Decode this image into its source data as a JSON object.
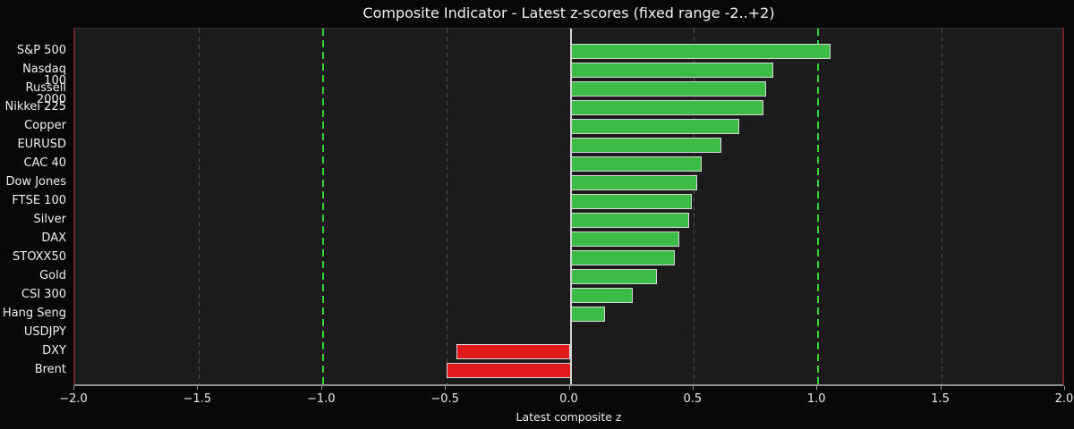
{
  "chart_data": {
    "type": "bar",
    "orientation": "horizontal",
    "title": "Composite Indicator - Latest z-scores (fixed range -2..+2)",
    "xlabel": "Latest composite z",
    "xlim": [
      -2.0,
      2.0
    ],
    "xticks": [
      -2.0,
      -1.5,
      -1.0,
      -0.5,
      0.0,
      0.5,
      1.0,
      1.5,
      2.0
    ],
    "xtick_labels": [
      "−2.0",
      "−1.5",
      "−1.0",
      "−0.5",
      "0.0",
      "0.5",
      "1.0",
      "1.5",
      "2.0"
    ],
    "categories": [
      "S&P 500",
      "Nasdaq 100",
      "Russell 2000",
      "Nikkei 225",
      "Copper",
      "EURUSD",
      "CAC 40",
      "Dow Jones",
      "FTSE 100",
      "Silver",
      "DAX",
      "STOXX50",
      "Gold",
      "CSI 300",
      "Hang Seng",
      "USDJPY",
      "DXY",
      "Brent"
    ],
    "values": [
      1.05,
      0.82,
      0.79,
      0.78,
      0.68,
      0.61,
      0.53,
      0.51,
      0.49,
      0.48,
      0.44,
      0.42,
      0.35,
      0.25,
      0.14,
      0.0,
      -0.46,
      -0.5
    ],
    "gridline_values": [
      -1.5,
      -0.5,
      0.5,
      1.5
    ],
    "threshold_values": [
      -1.0,
      1.0
    ],
    "colors": {
      "positive_bar": "#3cbb46",
      "negative_bar": "#e01a1a",
      "bar_edge": "#d8d8d8",
      "threshold_line": "#35d435",
      "zero_line": "#d4d4d4",
      "gridline": "#4e4e4e",
      "figure_background": "#070707",
      "plot_background": "#1b1b1b",
      "text": "#f2f2f2"
    },
    "legend": false,
    "grid": true
  }
}
